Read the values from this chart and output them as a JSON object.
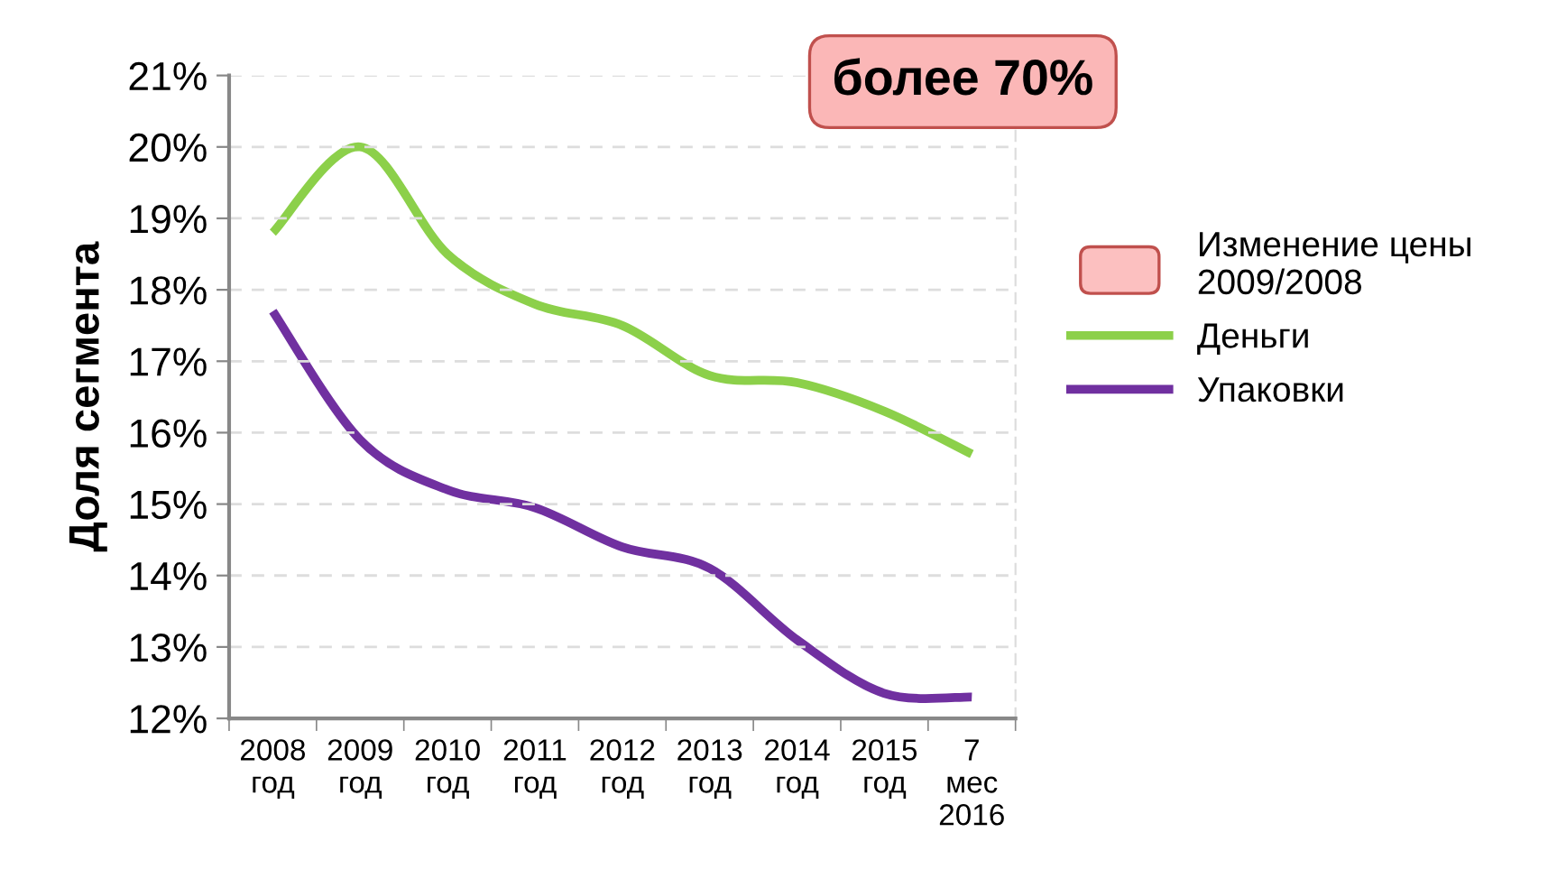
{
  "chart_data": {
    "type": "line",
    "ylabel": "Доля сегмента",
    "categories": [
      "2008 год",
      "2009 год",
      "2010 год",
      "2011 год",
      "2012 год",
      "2013 год",
      "2014 год",
      "2015 год",
      "7 мес 2016"
    ],
    "series": [
      {
        "name": "Деньги",
        "color": "#8cd04a",
        "values": [
          0.188,
          0.2,
          0.185,
          0.178,
          0.175,
          0.168,
          0.167,
          0.163,
          0.157
        ]
      },
      {
        "name": "Упаковки",
        "color": "#7030a0",
        "values": [
          0.177,
          0.159,
          0.152,
          0.1495,
          0.144,
          0.141,
          0.131,
          0.1235,
          0.123
        ]
      }
    ],
    "ylim": [
      0.12,
      0.21
    ],
    "yticks": [
      {
        "value": 0.12,
        "label": "12%"
      },
      {
        "value": 0.13,
        "label": "13%"
      },
      {
        "value": 0.14,
        "label": "14%"
      },
      {
        "value": 0.15,
        "label": "15%"
      },
      {
        "value": 0.16,
        "label": "16%"
      },
      {
        "value": 0.17,
        "label": "17%"
      },
      {
        "value": 0.18,
        "label": "18%"
      },
      {
        "value": 0.19,
        "label": "19%"
      },
      {
        "value": 0.2,
        "label": "20%"
      },
      {
        "value": 0.21,
        "label": "21%"
      }
    ],
    "grid": "y",
    "legend": "right",
    "marker": "none",
    "line_style": "solid",
    "annotations": [
      "более 70%",
      "Изменение цены 2009/2008"
    ]
  }
}
